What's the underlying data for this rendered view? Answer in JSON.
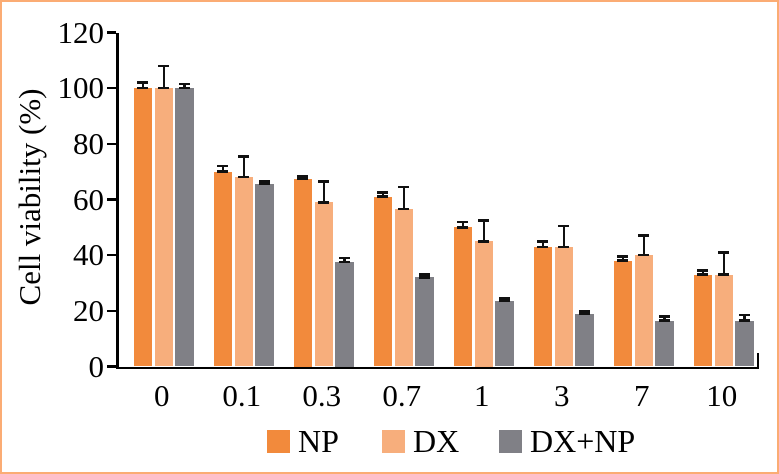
{
  "figure": {
    "background": "#FFFFFF",
    "border_color": "#FBAC74"
  },
  "chart_data": {
    "type": "bar",
    "title": "",
    "xlabel": "",
    "ylabel": "Cell viability (%)",
    "categories": [
      "0",
      "0.1",
      "0.3",
      "0.7",
      "1",
      "3",
      "7",
      "10"
    ],
    "series": [
      {
        "name": "NP",
        "color": "#F28A3C",
        "values": [
          100,
          70,
          67.5,
          61,
          50,
          43,
          38,
          33
        ],
        "errors": [
          2,
          2,
          1,
          1.5,
          2,
          2,
          1.5,
          1.5
        ]
      },
      {
        "name": "DX",
        "color": "#F7AE7C",
        "values": [
          100,
          68,
          59,
          56.5,
          45,
          43,
          40,
          33
        ],
        "errors": [
          8,
          7.5,
          7.5,
          8,
          7.5,
          7.5,
          7,
          8
        ]
      },
      {
        "name": "DX+NP",
        "color": "#808086",
        "values": [
          100,
          65.5,
          37.5,
          32,
          23.5,
          19,
          16.5,
          16.5
        ],
        "errors": [
          1.5,
          1,
          1.5,
          1,
          1,
          1,
          1.5,
          2
        ]
      }
    ],
    "ylim": [
      0,
      120
    ],
    "yticks": [
      0,
      20,
      40,
      60,
      80,
      100,
      120
    ],
    "grid": false,
    "error_bars": true,
    "legend_position": "bottom",
    "axis_color": "#000000",
    "errorbar_color": "#111111"
  }
}
